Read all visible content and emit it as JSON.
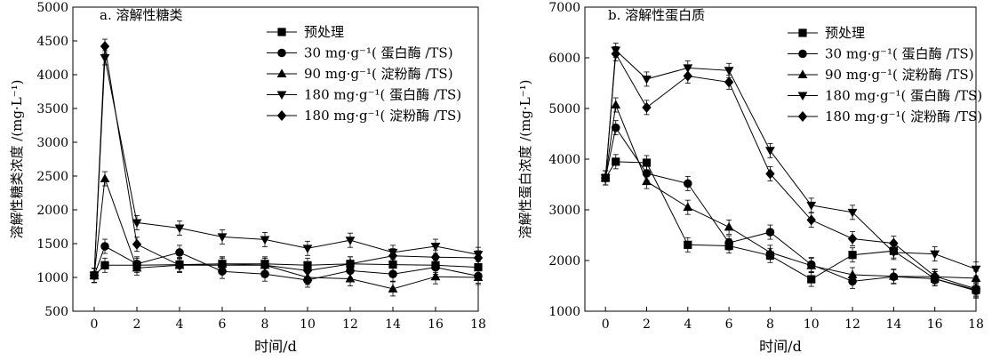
{
  "chart_data": [
    {
      "type": "line",
      "title": "a. 溶解性糖类",
      "xlabel": "时间/d",
      "ylabel": "溶解性糖类浓度 /(mg·L⁻¹)",
      "xlim": [
        -1,
        18
      ],
      "ylim": [
        500,
        5000
      ],
      "xticks": [
        0,
        2,
        4,
        6,
        8,
        10,
        12,
        14,
        16,
        18
      ],
      "yticks": [
        500,
        1000,
        1500,
        2000,
        2500,
        3000,
        3500,
        4000,
        4500,
        5000
      ],
      "legend_position": "top-right",
      "series": [
        {
          "name": "预处理",
          "marker": "square",
          "x": [
            0,
            0.5,
            2,
            4,
            6,
            8,
            10,
            12,
            14,
            16,
            18
          ],
          "y": [
            1030,
            1180,
            1180,
            1190,
            1200,
            1200,
            1180,
            1200,
            1190,
            1180,
            1150
          ]
        },
        {
          "name": "30 mg·g⁻¹( 蛋白酶 /TS)",
          "marker": "circle",
          "x": [
            0,
            0.5,
            2,
            4,
            6,
            8,
            10,
            12,
            14,
            16,
            18
          ],
          "y": [
            1030,
            1460,
            1200,
            1370,
            1090,
            1050,
            960,
            1100,
            1050,
            1150,
            1020
          ]
        },
        {
          "name": "90 mg·g⁻¹( 淀粉酶 /TS)",
          "marker": "triangle-up",
          "x": [
            0,
            0.5,
            2,
            4,
            6,
            8,
            10,
            12,
            14,
            16,
            18
          ],
          "y": [
            1030,
            2460,
            1140,
            1180,
            1200,
            1180,
            1000,
            980,
            830,
            1010,
            1000
          ]
        },
        {
          "name": "180 mg·g⁻¹( 蛋白酶 /TS)",
          "marker": "triangle-down",
          "x": [
            0,
            0.5,
            2,
            4,
            6,
            8,
            10,
            12,
            14,
            16,
            18
          ],
          "y": [
            1030,
            4250,
            1810,
            1730,
            1600,
            1560,
            1430,
            1550,
            1370,
            1460,
            1340
          ]
        },
        {
          "name": "180 mg·g⁻¹( 淀粉酶 /TS)",
          "marker": "diamond",
          "x": [
            0,
            0.5,
            2,
            4,
            6,
            8,
            10,
            12,
            14,
            16,
            18
          ],
          "y": [
            1030,
            4420,
            1490,
            1180,
            1180,
            1180,
            1100,
            1200,
            1320,
            1300,
            1290
          ]
        }
      ]
    },
    {
      "type": "line",
      "title": "b. 溶解性蛋白质",
      "xlabel": "时间/d",
      "ylabel": "溶解性蛋白浓度 /(mg·L⁻¹)",
      "xlim": [
        -1,
        18
      ],
      "ylim": [
        1000,
        7000
      ],
      "xticks": [
        0,
        2,
        4,
        6,
        8,
        10,
        12,
        14,
        16,
        18
      ],
      "yticks": [
        1000,
        2000,
        3000,
        4000,
        5000,
        6000,
        7000
      ],
      "legend_position": "top-right",
      "series": [
        {
          "name": "预处理",
          "marker": "square",
          "x": [
            0,
            0.5,
            2,
            4,
            6,
            8,
            10,
            12,
            14,
            16,
            18
          ],
          "y": [
            3630,
            3950,
            3930,
            2310,
            2290,
            2100,
            1630,
            2110,
            2190,
            1640,
            1420
          ]
        },
        {
          "name": "30 mg·g⁻¹( 蛋白酶 /TS)",
          "marker": "circle",
          "x": [
            0,
            0.5,
            2,
            4,
            6,
            8,
            10,
            12,
            14,
            16,
            18
          ],
          "y": [
            3630,
            4620,
            3720,
            3520,
            2350,
            2560,
            1920,
            1590,
            1680,
            1640,
            1400
          ]
        },
        {
          "name": "90 mg·g⁻¹( 淀粉酶 /TS)",
          "marker": "triangle-up",
          "x": [
            0,
            0.5,
            2,
            4,
            6,
            8,
            10,
            12,
            14,
            16,
            18
          ],
          "y": [
            3630,
            5070,
            3560,
            3050,
            2660,
            2160,
            1900,
            1720,
            1690,
            1680,
            1650
          ]
        },
        {
          "name": "180 mg·g⁻¹( 蛋白酶 /TS)",
          "marker": "triangle-down",
          "x": [
            0,
            0.5,
            2,
            4,
            6,
            8,
            10,
            12,
            14,
            16,
            18
          ],
          "y": [
            3630,
            6150,
            5580,
            5800,
            5750,
            4170,
            3090,
            2950,
            2160,
            2130,
            1830
          ]
        },
        {
          "name": "180 mg·g⁻¹( 淀粉酶 /TS)",
          "marker": "diamond",
          "x": [
            0,
            0.5,
            2,
            4,
            6,
            8,
            10,
            12,
            14,
            16,
            18
          ],
          "y": [
            3630,
            6080,
            5020,
            5640,
            5520,
            3710,
            2800,
            2430,
            2340,
            1690,
            1440
          ]
        }
      ]
    }
  ]
}
